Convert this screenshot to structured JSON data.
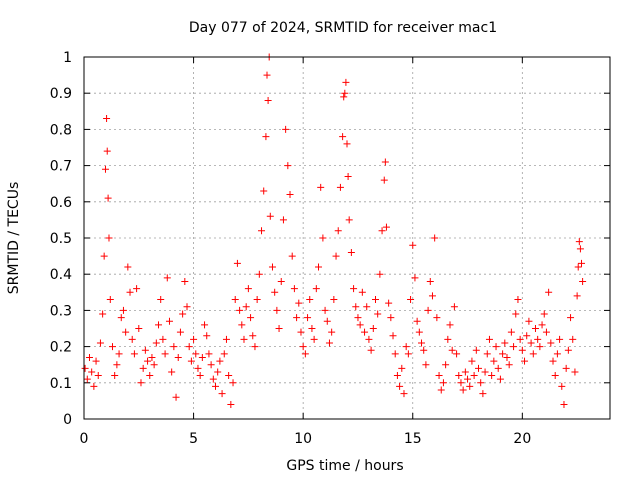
{
  "chart_data": {
    "type": "scatter",
    "title": "Day 077 of 2024, SRMTID for receiver mac1",
    "xlabel": "GPS time / hours",
    "ylabel": "SRMTID / TECUs",
    "xlim": [
      0,
      24
    ],
    "ylim": [
      0,
      1
    ],
    "xticks": [
      0,
      5,
      10,
      15,
      20
    ],
    "xtick_labels": [
      "0",
      "5",
      "10",
      "15",
      "20"
    ],
    "yticks": [
      0,
      0.1,
      0.2,
      0.3,
      0.4,
      0.5,
      0.6,
      0.7,
      0.8,
      0.9,
      1
    ],
    "ytick_labels": [
      "0",
      "0.1",
      "0.2",
      "0.3",
      "0.4",
      "0.5",
      "0.6",
      "0.7",
      "0.8",
      "0.9",
      "1"
    ],
    "grid": true,
    "marker": "+",
    "series": [
      {
        "name": "SRMTID",
        "color": "#ff0000",
        "points": [
          [
            0.05,
            0.14
          ],
          [
            0.15,
            0.11
          ],
          [
            0.25,
            0.17
          ],
          [
            0.35,
            0.13
          ],
          [
            0.45,
            0.09
          ],
          [
            0.55,
            0.16
          ],
          [
            0.65,
            0.12
          ],
          [
            0.75,
            0.21
          ],
          [
            0.85,
            0.29
          ],
          [
            0.92,
            0.45
          ],
          [
            0.98,
            0.69
          ],
          [
            1.03,
            0.83
          ],
          [
            1.06,
            0.74
          ],
          [
            1.1,
            0.61
          ],
          [
            1.14,
            0.5
          ],
          [
            1.2,
            0.33
          ],
          [
            1.3,
            0.2
          ],
          [
            1.4,
            0.12
          ],
          [
            1.5,
            0.15
          ],
          [
            1.6,
            0.18
          ],
          [
            1.7,
            0.28
          ],
          [
            1.8,
            0.3
          ],
          [
            1.9,
            0.24
          ],
          [
            2.0,
            0.42
          ],
          [
            2.1,
            0.35
          ],
          [
            2.2,
            0.22
          ],
          [
            2.3,
            0.18
          ],
          [
            2.4,
            0.36
          ],
          [
            2.5,
            0.25
          ],
          [
            2.6,
            0.1
          ],
          [
            2.7,
            0.14
          ],
          [
            2.8,
            0.19
          ],
          [
            2.9,
            0.16
          ],
          [
            3.0,
            0.12
          ],
          [
            3.1,
            0.17
          ],
          [
            3.2,
            0.15
          ],
          [
            3.3,
            0.21
          ],
          [
            3.4,
            0.26
          ],
          [
            3.5,
            0.33
          ],
          [
            3.6,
            0.22
          ],
          [
            3.7,
            0.18
          ],
          [
            3.8,
            0.39
          ],
          [
            3.9,
            0.27
          ],
          [
            4.0,
            0.13
          ],
          [
            4.1,
            0.2
          ],
          [
            4.2,
            0.06
          ],
          [
            4.3,
            0.17
          ],
          [
            4.4,
            0.24
          ],
          [
            4.5,
            0.29
          ],
          [
            4.6,
            0.38
          ],
          [
            4.7,
            0.31
          ],
          [
            4.8,
            0.2
          ],
          [
            4.9,
            0.16
          ],
          [
            5.0,
            0.22
          ],
          [
            5.1,
            0.18
          ],
          [
            5.2,
            0.14
          ],
          [
            5.3,
            0.12
          ],
          [
            5.4,
            0.17
          ],
          [
            5.5,
            0.26
          ],
          [
            5.6,
            0.23
          ],
          [
            5.7,
            0.18
          ],
          [
            5.8,
            0.15
          ],
          [
            5.9,
            0.11
          ],
          [
            6.0,
            0.09
          ],
          [
            6.1,
            0.13
          ],
          [
            6.2,
            0.16
          ],
          [
            6.3,
            0.07
          ],
          [
            6.4,
            0.18
          ],
          [
            6.5,
            0.22
          ],
          [
            6.6,
            0.12
          ],
          [
            6.7,
            0.04
          ],
          [
            6.8,
            0.1
          ],
          [
            6.9,
            0.33
          ],
          [
            7.0,
            0.43
          ],
          [
            7.1,
            0.3
          ],
          [
            7.2,
            0.26
          ],
          [
            7.3,
            0.22
          ],
          [
            7.4,
            0.31
          ],
          [
            7.5,
            0.36
          ],
          [
            7.6,
            0.28
          ],
          [
            7.7,
            0.23
          ],
          [
            7.8,
            0.2
          ],
          [
            7.9,
            0.33
          ],
          [
            8.0,
            0.4
          ],
          [
            8.1,
            0.52
          ],
          [
            8.2,
            0.63
          ],
          [
            8.3,
            0.78
          ],
          [
            8.35,
            0.95
          ],
          [
            8.4,
            0.88
          ],
          [
            8.45,
            1.0
          ],
          [
            8.5,
            0.56
          ],
          [
            8.6,
            0.42
          ],
          [
            8.7,
            0.35
          ],
          [
            8.8,
            0.3
          ],
          [
            8.9,
            0.25
          ],
          [
            9.0,
            0.38
          ],
          [
            9.1,
            0.55
          ],
          [
            9.2,
            0.8
          ],
          [
            9.3,
            0.7
          ],
          [
            9.4,
            0.62
          ],
          [
            9.5,
            0.45
          ],
          [
            9.6,
            0.36
          ],
          [
            9.7,
            0.28
          ],
          [
            9.8,
            0.32
          ],
          [
            9.9,
            0.24
          ],
          [
            10.0,
            0.2
          ],
          [
            10.1,
            0.18
          ],
          [
            10.2,
            0.28
          ],
          [
            10.3,
            0.33
          ],
          [
            10.4,
            0.25
          ],
          [
            10.5,
            0.22
          ],
          [
            10.6,
            0.36
          ],
          [
            10.7,
            0.42
          ],
          [
            10.8,
            0.64
          ],
          [
            10.9,
            0.5
          ],
          [
            11.0,
            0.3
          ],
          [
            11.1,
            0.27
          ],
          [
            11.2,
            0.21
          ],
          [
            11.3,
            0.24
          ],
          [
            11.4,
            0.33
          ],
          [
            11.5,
            0.45
          ],
          [
            11.6,
            0.52
          ],
          [
            11.7,
            0.64
          ],
          [
            11.8,
            0.78
          ],
          [
            11.85,
            0.89
          ],
          [
            11.9,
            0.9
          ],
          [
            11.95,
            0.93
          ],
          [
            12.0,
            0.76
          ],
          [
            12.05,
            0.67
          ],
          [
            12.1,
            0.55
          ],
          [
            12.2,
            0.46
          ],
          [
            12.3,
            0.36
          ],
          [
            12.4,
            0.31
          ],
          [
            12.5,
            0.28
          ],
          [
            12.6,
            0.26
          ],
          [
            12.7,
            0.35
          ],
          [
            12.8,
            0.24
          ],
          [
            12.9,
            0.31
          ],
          [
            13.0,
            0.22
          ],
          [
            13.1,
            0.19
          ],
          [
            13.2,
            0.25
          ],
          [
            13.3,
            0.33
          ],
          [
            13.4,
            0.29
          ],
          [
            13.5,
            0.4
          ],
          [
            13.6,
            0.52
          ],
          [
            13.7,
            0.66
          ],
          [
            13.75,
            0.71
          ],
          [
            13.8,
            0.53
          ],
          [
            13.9,
            0.32
          ],
          [
            14.0,
            0.28
          ],
          [
            14.1,
            0.23
          ],
          [
            14.2,
            0.18
          ],
          [
            14.3,
            0.12
          ],
          [
            14.4,
            0.09
          ],
          [
            14.5,
            0.14
          ],
          [
            14.6,
            0.07
          ],
          [
            14.7,
            0.2
          ],
          [
            14.8,
            0.18
          ],
          [
            14.9,
            0.33
          ],
          [
            15.0,
            0.48
          ],
          [
            15.1,
            0.39
          ],
          [
            15.2,
            0.27
          ],
          [
            15.3,
            0.24
          ],
          [
            15.4,
            0.21
          ],
          [
            15.5,
            0.19
          ],
          [
            15.6,
            0.15
          ],
          [
            15.7,
            0.3
          ],
          [
            15.8,
            0.38
          ],
          [
            15.9,
            0.34
          ],
          [
            16.0,
            0.5
          ],
          [
            16.1,
            0.28
          ],
          [
            16.2,
            0.12
          ],
          [
            16.3,
            0.08
          ],
          [
            16.4,
            0.1
          ],
          [
            16.5,
            0.15
          ],
          [
            16.6,
            0.22
          ],
          [
            16.7,
            0.26
          ],
          [
            16.8,
            0.19
          ],
          [
            16.9,
            0.31
          ],
          [
            17.0,
            0.18
          ],
          [
            17.1,
            0.12
          ],
          [
            17.2,
            0.1
          ],
          [
            17.3,
            0.08
          ],
          [
            17.4,
            0.13
          ],
          [
            17.5,
            0.11
          ],
          [
            17.6,
            0.09
          ],
          [
            17.7,
            0.16
          ],
          [
            17.8,
            0.12
          ],
          [
            17.9,
            0.19
          ],
          [
            18.0,
            0.14
          ],
          [
            18.1,
            0.1
          ],
          [
            18.2,
            0.07
          ],
          [
            18.3,
            0.13
          ],
          [
            18.4,
            0.18
          ],
          [
            18.5,
            0.22
          ],
          [
            18.6,
            0.12
          ],
          [
            18.7,
            0.16
          ],
          [
            18.8,
            0.2
          ],
          [
            18.9,
            0.14
          ],
          [
            19.0,
            0.11
          ],
          [
            19.1,
            0.18
          ],
          [
            19.2,
            0.21
          ],
          [
            19.3,
            0.17
          ],
          [
            19.4,
            0.15
          ],
          [
            19.5,
            0.24
          ],
          [
            19.6,
            0.2
          ],
          [
            19.7,
            0.29
          ],
          [
            19.8,
            0.33
          ],
          [
            19.9,
            0.22
          ],
          [
            20.0,
            0.19
          ],
          [
            20.1,
            0.16
          ],
          [
            20.2,
            0.23
          ],
          [
            20.3,
            0.27
          ],
          [
            20.4,
            0.21
          ],
          [
            20.5,
            0.18
          ],
          [
            20.6,
            0.25
          ],
          [
            20.7,
            0.22
          ],
          [
            20.8,
            0.2
          ],
          [
            20.9,
            0.26
          ],
          [
            21.0,
            0.29
          ],
          [
            21.1,
            0.24
          ],
          [
            21.2,
            0.35
          ],
          [
            21.3,
            0.21
          ],
          [
            21.4,
            0.16
          ],
          [
            21.5,
            0.12
          ],
          [
            21.6,
            0.18
          ],
          [
            21.7,
            0.22
          ],
          [
            21.8,
            0.09
          ],
          [
            21.9,
            0.04
          ],
          [
            22.0,
            0.14
          ],
          [
            22.1,
            0.19
          ],
          [
            22.2,
            0.28
          ],
          [
            22.3,
            0.22
          ],
          [
            22.4,
            0.13
          ],
          [
            22.5,
            0.34
          ],
          [
            22.55,
            0.42
          ],
          [
            22.6,
            0.49
          ],
          [
            22.65,
            0.47
          ],
          [
            22.7,
            0.43
          ],
          [
            22.75,
            0.38
          ]
        ]
      }
    ]
  }
}
